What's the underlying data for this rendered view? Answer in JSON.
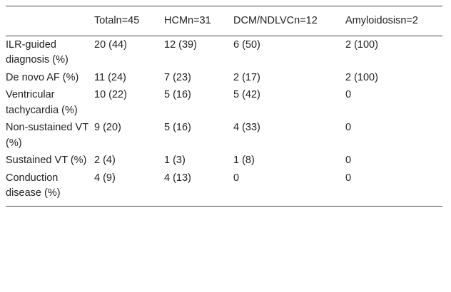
{
  "table": {
    "headers": [
      "",
      "Totaln=45",
      "HCMn=31",
      "DCM/NDLVCn=12",
      "Amyloidosisn=2"
    ],
    "rows": [
      {
        "label": "ILR-guided diagnosis (%)",
        "cells": [
          "20 (44)",
          "12 (39)",
          "6 (50)",
          "2 (100)"
        ]
      },
      {
        "label": "De novo AF (%)",
        "cells": [
          "11 (24)",
          "7 (23)",
          "2 (17)",
          "2 (100)"
        ]
      },
      {
        "label": "Ventricular tachycardia (%)",
        "cells": [
          "10 (22)",
          "5 (16)",
          "5 (42)",
          "0"
        ]
      },
      {
        "label": "Non-sustained VT (%)",
        "cells": [
          "9 (20)",
          "5 (16)",
          "4 (33)",
          "0"
        ]
      },
      {
        "label": "Sustained VT (%)",
        "cells": [
          "2 (4)",
          "1 (3)",
          "1 (8)",
          "0"
        ]
      },
      {
        "label": "Conduction disease (%)",
        "cells": [
          "4 (9)",
          "4 (13)",
          "0",
          "0"
        ]
      }
    ]
  }
}
